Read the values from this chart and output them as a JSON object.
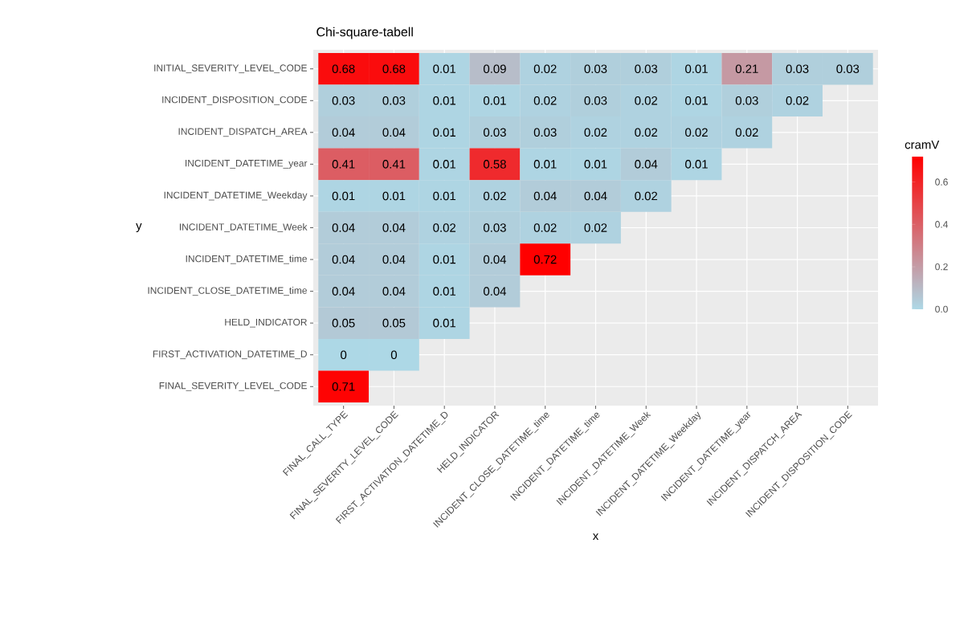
{
  "chart_data": {
    "type": "heatmap",
    "title": "Chi-square-tabell",
    "xlabel": "x",
    "ylabel": "y",
    "clabel": "cramV",
    "categories": [
      "FINAL_CALL_TYPE",
      "FINAL_SEVERITY_LEVEL_CODE",
      "FIRST_ACTIVATION_DATETIME_D",
      "HELD_INDICATOR",
      "INCIDENT_CLOSE_DATETIME_time",
      "INCIDENT_DATETIME_time",
      "INCIDENT_DATETIME_Week",
      "INCIDENT_DATETIME_Weekday",
      "INCIDENT_DATETIME_year",
      "INCIDENT_DISPATCH_AREA",
      "INCIDENT_DISPOSITION_CODE"
    ],
    "y_categories": [
      "INITIAL_SEVERITY_LEVEL_CODE",
      "INCIDENT_DISPOSITION_CODE",
      "INCIDENT_DISPATCH_AREA",
      "INCIDENT_DATETIME_year",
      "INCIDENT_DATETIME_Weekday",
      "INCIDENT_DATETIME_Week",
      "INCIDENT_DATETIME_time",
      "INCIDENT_CLOSE_DATETIME_time",
      "HELD_INDICATOR",
      "FIRST_ACTIVATION_DATETIME_D",
      "FINAL_SEVERITY_LEVEL_CODE"
    ],
    "cells": [
      [
        0.68,
        0.68,
        0.01,
        0.09,
        0.02,
        0.03,
        0.03,
        0.01,
        0.21,
        0.03,
        0.03
      ],
      [
        0.03,
        0.03,
        0.01,
        0.01,
        0.02,
        0.03,
        0.02,
        0.01,
        0.03,
        0.02,
        null
      ],
      [
        0.04,
        0.04,
        0.01,
        0.03,
        0.03,
        0.02,
        0.02,
        0.02,
        0.02,
        null,
        null
      ],
      [
        0.41,
        0.41,
        0.01,
        0.58,
        0.01,
        0.01,
        0.04,
        0.01,
        null,
        null,
        null
      ],
      [
        0.01,
        0.01,
        0.01,
        0.02,
        0.04,
        0.04,
        0.02,
        null,
        null,
        null,
        null
      ],
      [
        0.04,
        0.04,
        0.02,
        0.03,
        0.02,
        0.02,
        null,
        null,
        null,
        null,
        null
      ],
      [
        0.04,
        0.04,
        0.01,
        0.04,
        0.72,
        null,
        null,
        null,
        null,
        null,
        null
      ],
      [
        0.04,
        0.04,
        0.01,
        0.04,
        null,
        null,
        null,
        null,
        null,
        null,
        null
      ],
      [
        0.05,
        0.05,
        0.01,
        null,
        null,
        null,
        null,
        null,
        null,
        null,
        null
      ],
      [
        0,
        0,
        null,
        null,
        null,
        null,
        null,
        null,
        null,
        null,
        null
      ],
      [
        0.71,
        null,
        null,
        null,
        null,
        null,
        null,
        null,
        null,
        null,
        null
      ]
    ],
    "colors": [
      "#add8e6",
      "#ff0000"
    ],
    "clim": [
      0,
      0.72
    ],
    "cticks": [
      {
        "value": 0,
        "label": "0.0"
      },
      0.2,
      0.4,
      0.6
    ],
    "data_labels": true,
    "grid": true
  }
}
